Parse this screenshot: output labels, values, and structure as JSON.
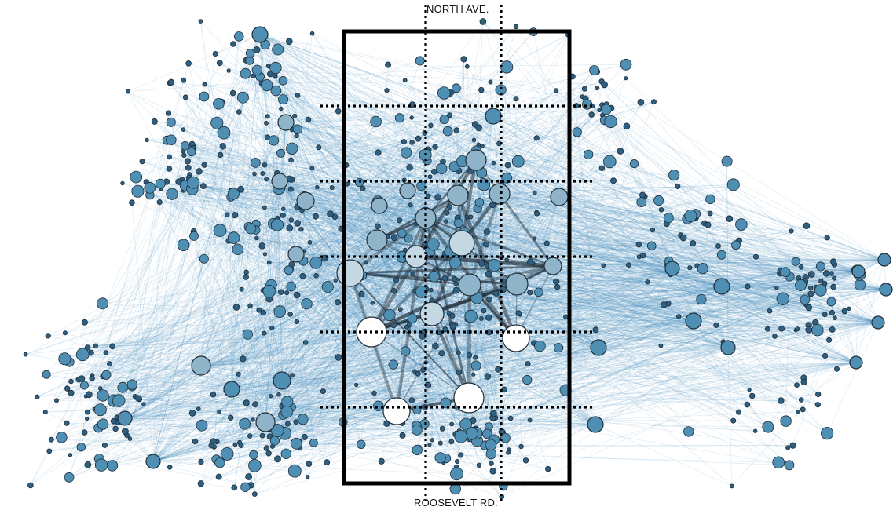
{
  "labels": {
    "north": "NORTH AVE.",
    "south": "ROOSEVELT RD."
  },
  "colors": {
    "edge": "#3f86b8",
    "strong_edge": "#1f2a33",
    "node_dark": "#2e5f80",
    "node_mid": "#4f8fb3",
    "node_light": "#8fb4c9",
    "node_pale": "#c4d8e3",
    "node_white": "#ffffff",
    "node_stroke": "#1f2d38",
    "frame": "#000000",
    "grid_line": "#000000"
  },
  "diagram": {
    "description_type": "network-graph-overlay",
    "grid": {
      "columns": 3,
      "rows": 6,
      "style": "dotted"
    }
  }
}
